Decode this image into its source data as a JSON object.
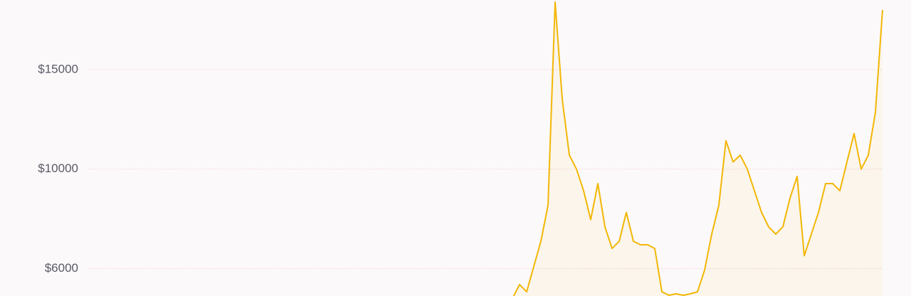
{
  "chart_data": {
    "type": "line",
    "ylim": [
      4900,
      18500
    ],
    "yticks": [
      {
        "value": 6000,
        "label": "$6000"
      },
      {
        "value": 10000,
        "label": "$10000"
      },
      {
        "value": 15000,
        "label": "$15000"
      }
    ],
    "grid": true,
    "series": [
      {
        "color": "#f2b705",
        "values": [
          null,
          null,
          null,
          null,
          null,
          null,
          null,
          null,
          null,
          null,
          null,
          null,
          null,
          null,
          null,
          null,
          null,
          null,
          null,
          null,
          null,
          null,
          null,
          null,
          null,
          null,
          null,
          null,
          null,
          null,
          null,
          null,
          null,
          null,
          null,
          null,
          null,
          null,
          null,
          null,
          null,
          null,
          null,
          null,
          null,
          null,
          null,
          null,
          null,
          null,
          null,
          null,
          null,
          null,
          null,
          null,
          null,
          null,
          null,
          null,
          4800,
          5360,
          5070,
          6090,
          7100,
          8550,
          18400,
          13500,
          10700,
          10000,
          9130,
          7970,
          9420,
          7680,
          6810,
          7100,
          8260,
          7100,
          6960,
          6960,
          6810,
          5070,
          4930,
          4990,
          4930,
          4990,
          5070,
          5940,
          7390,
          8550,
          11430,
          10360,
          10700,
          10000,
          9130,
          8260,
          7680,
          7390,
          7680,
          8840,
          9710,
          6520,
          7390,
          8260,
          9420,
          9420,
          9130,
          10360,
          11790,
          10000,
          10700,
          12860,
          18000
        ]
      }
    ]
  }
}
